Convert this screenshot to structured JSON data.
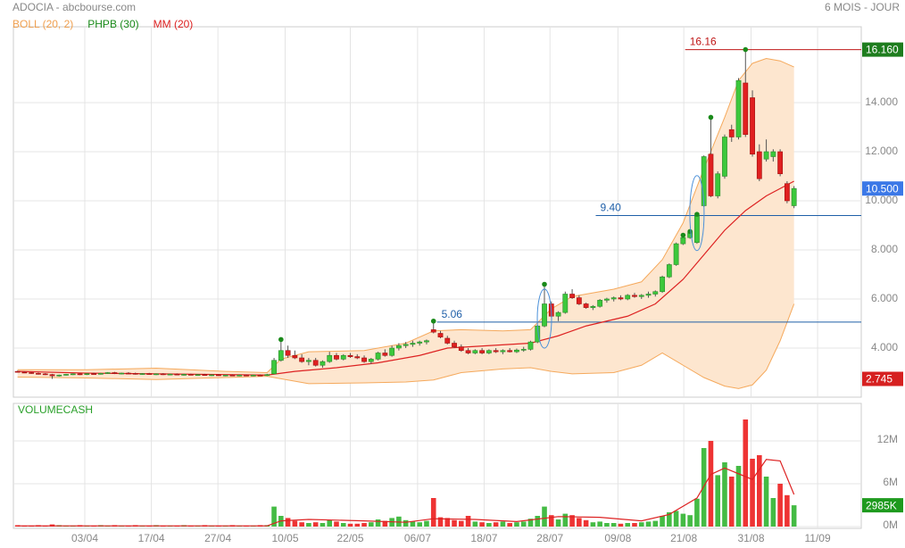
{
  "chart_data": {
    "type": "candlestick",
    "title": "ADOCIA - abcbourse.com",
    "period": "6 MOIS - JOUR",
    "legend": [
      {
        "name": "BOLL (20, 2)",
        "color": "#f0a050"
      },
      {
        "name": "PHPB (30)",
        "color": "#1a8a1a"
      },
      {
        "name": "MM (20)",
        "color": "#dd2222"
      }
    ],
    "xlim": [
      -0.6,
      121.7
    ],
    "xticks": [
      {
        "value": 9.7,
        "label": "03/04"
      },
      {
        "value": 19.3,
        "label": "17/04"
      },
      {
        "value": 28.9,
        "label": "27/04"
      },
      {
        "value": 38.6,
        "label": "10/05"
      },
      {
        "value": 48.0,
        "label": "22/05"
      },
      {
        "value": 57.7,
        "label": "06/07"
      },
      {
        "value": 67.3,
        "label": "18/07"
      },
      {
        "value": 76.8,
        "label": "28/07"
      },
      {
        "value": 86.6,
        "label": "09/08"
      },
      {
        "value": 96.1,
        "label": "21/08"
      },
      {
        "value": 105.8,
        "label": "31/08"
      },
      {
        "value": 115.4,
        "label": "11/09"
      }
    ],
    "ylim": [
      2,
      17.09
    ],
    "yticks": [
      {
        "value": 4,
        "label": "4.000"
      },
      {
        "value": 6,
        "label": "6.000"
      },
      {
        "value": 8,
        "label": "8.000"
      },
      {
        "value": 10,
        "label": "10.000"
      },
      {
        "value": 12,
        "label": "12.000"
      },
      {
        "value": 14,
        "label": "14.000"
      }
    ],
    "up_color": "#3cc83c",
    "down_color": "#e02020",
    "ohlc": [
      [
        3.05,
        3.08,
        3.0,
        3.02
      ],
      [
        3.02,
        3.05,
        2.98,
        3.0
      ],
      [
        3.0,
        3.02,
        2.95,
        2.97
      ],
      [
        2.97,
        3.0,
        2.92,
        2.95
      ],
      [
        2.95,
        2.98,
        2.9,
        2.93
      ],
      [
        2.92,
        2.95,
        2.745,
        2.87
      ],
      [
        2.87,
        2.92,
        2.84,
        2.9
      ],
      [
        2.9,
        2.95,
        2.88,
        2.93
      ],
      [
        2.93,
        2.97,
        2.9,
        2.95
      ],
      [
        2.95,
        2.98,
        2.9,
        2.92
      ],
      [
        2.92,
        2.97,
        2.9,
        2.96
      ],
      [
        2.96,
        3.0,
        2.93,
        2.95
      ],
      [
        2.95,
        2.99,
        2.92,
        2.97
      ],
      [
        2.97,
        3.02,
        2.95,
        3.0
      ],
      [
        3.0,
        3.03,
        2.94,
        2.96
      ],
      [
        2.96,
        3.0,
        2.93,
        2.98
      ],
      [
        2.98,
        3.02,
        2.95,
        2.97
      ],
      [
        2.97,
        3.0,
        2.92,
        2.94
      ],
      [
        2.94,
        2.98,
        2.91,
        2.96
      ],
      [
        2.96,
        2.99,
        2.92,
        2.93
      ],
      [
        2.93,
        2.97,
        2.9,
        2.95
      ],
      [
        2.95,
        2.98,
        2.9,
        2.92
      ],
      [
        2.92,
        2.96,
        2.89,
        2.94
      ],
      [
        2.94,
        2.97,
        2.9,
        2.91
      ],
      [
        2.91,
        2.95,
        2.88,
        2.93
      ],
      [
        2.93,
        2.96,
        2.89,
        2.9
      ],
      [
        2.9,
        2.94,
        2.87,
        2.92
      ],
      [
        2.92,
        2.95,
        2.88,
        2.89
      ],
      [
        2.89,
        2.93,
        2.86,
        2.91
      ],
      [
        2.91,
        2.94,
        2.87,
        2.88
      ],
      [
        2.88,
        2.92,
        2.85,
        2.9
      ],
      [
        2.9,
        2.93,
        2.86,
        2.88
      ],
      [
        2.88,
        2.92,
        2.85,
        2.9
      ],
      [
        2.9,
        2.93,
        2.86,
        2.87
      ],
      [
        2.87,
        2.92,
        2.85,
        2.9
      ],
      [
        2.9,
        2.93,
        2.86,
        2.88
      ],
      [
        2.88,
        2.95,
        2.86,
        2.92
      ],
      [
        2.95,
        3.6,
        2.93,
        3.5
      ],
      [
        3.5,
        4.35,
        3.45,
        3.9
      ],
      [
        3.9,
        4.1,
        3.6,
        3.7
      ],
      [
        3.7,
        3.9,
        3.55,
        3.6
      ],
      [
        3.6,
        3.75,
        3.4,
        3.45
      ],
      [
        3.45,
        3.6,
        3.3,
        3.5
      ],
      [
        3.5,
        3.6,
        3.25,
        3.3
      ],
      [
        3.3,
        3.5,
        3.2,
        3.45
      ],
      [
        3.45,
        3.85,
        3.4,
        3.7
      ],
      [
        3.7,
        3.8,
        3.5,
        3.55
      ],
      [
        3.55,
        3.75,
        3.5,
        3.7
      ],
      [
        3.7,
        3.8,
        3.6,
        3.65
      ],
      [
        3.65,
        3.75,
        3.55,
        3.6
      ],
      [
        3.6,
        3.7,
        3.4,
        3.45
      ],
      [
        3.45,
        3.6,
        3.35,
        3.55
      ],
      [
        3.55,
        3.85,
        3.5,
        3.8
      ],
      [
        3.8,
        3.95,
        3.65,
        3.7
      ],
      [
        3.7,
        4.1,
        3.65,
        4.0
      ],
      [
        4.0,
        4.2,
        3.9,
        4.1
      ],
      [
        4.1,
        4.25,
        4.0,
        4.15
      ],
      [
        4.15,
        4.3,
        4.05,
        4.2
      ],
      [
        4.2,
        4.3,
        4.1,
        4.25
      ],
      [
        4.25,
        4.35,
        4.15,
        4.3
      ],
      [
        4.75,
        5.1,
        4.6,
        4.65
      ],
      [
        4.6,
        4.7,
        4.4,
        4.45
      ],
      [
        4.4,
        4.5,
        4.15,
        4.2
      ],
      [
        4.2,
        4.3,
        4.0,
        4.05
      ],
      [
        4.05,
        4.15,
        3.85,
        3.9
      ],
      [
        3.9,
        4.0,
        3.75,
        3.8
      ],
      [
        3.8,
        3.95,
        3.75,
        3.9
      ],
      [
        3.9,
        4.0,
        3.75,
        3.8
      ],
      [
        3.8,
        3.95,
        3.75,
        3.9
      ],
      [
        3.9,
        4.0,
        3.8,
        3.85
      ],
      [
        3.85,
        3.95,
        3.75,
        3.9
      ],
      [
        3.9,
        4.0,
        3.82,
        3.85
      ],
      [
        3.85,
        3.98,
        3.8,
        3.92
      ],
      [
        3.92,
        4.05,
        3.85,
        3.95
      ],
      [
        3.95,
        4.3,
        3.9,
        4.25
      ],
      [
        4.25,
        4.95,
        4.2,
        4.9
      ],
      [
        4.9,
        6.6,
        4.85,
        5.8
      ],
      [
        5.8,
        5.9,
        5.25,
        5.3
      ],
      [
        5.3,
        5.5,
        5.1,
        5.45
      ],
      [
        5.45,
        6.3,
        5.4,
        6.2
      ],
      [
        6.2,
        6.4,
        6.0,
        6.05
      ],
      [
        6.05,
        6.15,
        5.75,
        5.8
      ],
      [
        5.8,
        5.85,
        5.6,
        5.65
      ],
      [
        5.65,
        5.75,
        5.55,
        5.7
      ],
      [
        5.7,
        6.0,
        5.65,
        5.95
      ],
      [
        5.95,
        6.05,
        5.85,
        6.0
      ],
      [
        6.0,
        6.1,
        5.9,
        6.05
      ],
      [
        6.05,
        6.15,
        5.95,
        6.0
      ],
      [
        6.0,
        6.2,
        5.95,
        6.15
      ],
      [
        6.15,
        6.25,
        6.05,
        6.1
      ],
      [
        6.1,
        6.2,
        6.0,
        6.15
      ],
      [
        6.15,
        6.3,
        6.05,
        6.2
      ],
      [
        6.2,
        6.35,
        6.1,
        6.3
      ],
      [
        6.3,
        6.95,
        6.25,
        6.9
      ],
      [
        6.9,
        7.45,
        6.85,
        7.4
      ],
      [
        7.4,
        8.3,
        7.35,
        8.25
      ],
      [
        8.25,
        8.6,
        8.2,
        8.5
      ],
      [
        8.5,
        8.75,
        8.45,
        8.7
      ],
      [
        8.3,
        9.45,
        8.25,
        9.4
      ],
      [
        9.8,
        11.85,
        9.75,
        11.8
      ],
      [
        11.9,
        13.4,
        10.15,
        10.2
      ],
      [
        10.2,
        11.2,
        10.1,
        11.1
      ],
      [
        11.0,
        12.7,
        10.9,
        12.6
      ],
      [
        12.9,
        13.1,
        12.4,
        12.6
      ],
      [
        12.6,
        15.0,
        12.5,
        14.9
      ],
      [
        14.8,
        16.16,
        12.6,
        12.7
      ],
      [
        14.2,
        14.5,
        11.8,
        11.9
      ],
      [
        12.0,
        12.3,
        10.8,
        10.9
      ],
      [
        11.7,
        12.5,
        11.6,
        12.0
      ],
      [
        11.8,
        12.1,
        11.6,
        12.0
      ],
      [
        12.0,
        12.1,
        11.0,
        11.1
      ],
      [
        10.7,
        10.8,
        9.9,
        10.0
      ],
      [
        9.8,
        10.6,
        9.7,
        10.5
      ]
    ],
    "boll": {
      "color": "#f5a95c",
      "fill": "#fde6cf",
      "x": [
        0,
        10,
        20,
        30,
        36,
        38,
        42,
        50,
        56,
        60,
        64,
        70,
        74,
        77,
        80,
        86,
        90,
        93,
        96,
        99,
        102,
        104,
        106,
        108,
        110,
        112
      ],
      "upper": [
        3.12,
        3.12,
        3.18,
        3.05,
        3.0,
        3.55,
        3.85,
        3.9,
        4.2,
        4.7,
        4.75,
        4.7,
        4.75,
        5.6,
        6.1,
        6.4,
        6.7,
        7.6,
        9.1,
        11.3,
        13.4,
        14.9,
        15.6,
        15.8,
        15.7,
        15.45
      ],
      "lower": [
        2.82,
        2.78,
        2.72,
        2.8,
        2.85,
        2.75,
        2.55,
        2.58,
        2.62,
        2.7,
        3.0,
        3.15,
        3.2,
        3.05,
        2.95,
        3.0,
        3.3,
        3.8,
        3.3,
        2.8,
        2.45,
        2.35,
        2.5,
        3.1,
        4.3,
        5.8
      ]
    },
    "mm": {
      "color": "#dd2222",
      "x": [
        0,
        10,
        20,
        30,
        36,
        40,
        46,
        52,
        58,
        62,
        68,
        74,
        78,
        82,
        88,
        92,
        96,
        99,
        102,
        105,
        108,
        110,
        112
      ],
      "values": [
        3.05,
        2.98,
        2.95,
        2.92,
        2.9,
        3.05,
        3.2,
        3.4,
        3.7,
        4.0,
        4.1,
        4.2,
        4.5,
        4.9,
        5.3,
        5.8,
        6.8,
        7.8,
        8.8,
        9.6,
        10.2,
        10.5,
        10.8
      ]
    },
    "phpb": {
      "color": "#1a8a1a",
      "x": [
        38,
        60,
        76,
        96,
        97,
        98,
        100,
        105
      ],
      "values": [
        4.35,
        5.1,
        6.6,
        8.6,
        8.75,
        9.45,
        13.4,
        16.16
      ]
    },
    "levels": [
      {
        "value": 16.16,
        "label": "16.16",
        "x_start": 96.3,
        "color": "#c01818"
      },
      {
        "value": 9.4,
        "label": "9.40",
        "x_start": 83.4,
        "color": "#1f5fa8"
      },
      {
        "value": 5.06,
        "label": "5.06",
        "x_start": 60.5,
        "color": "#1f5fa8"
      }
    ],
    "price_tags": [
      {
        "value": 16.16,
        "label": "16.160",
        "color": "#1e7d1e"
      },
      {
        "value": 10.5,
        "label": "10.500",
        "color": "#3b78e7"
      },
      {
        "value": 2.745,
        "label": "2.745",
        "color": "#d62020"
      }
    ],
    "volume": {
      "title": "VOLUMECASH",
      "ylim": [
        0,
        17.25
      ],
      "yticks": [
        {
          "value": 0,
          "label": "0M"
        },
        {
          "value": 6,
          "label": "6M"
        },
        {
          "value": 12,
          "label": "12M"
        }
      ],
      "values": [
        0.2,
        0.1,
        0.1,
        0.2,
        0.1,
        0.3,
        0.2,
        0.1,
        0.1,
        0.2,
        0.1,
        0.1,
        0.2,
        0.1,
        0.2,
        0.1,
        0.1,
        0.2,
        0.1,
        0.1,
        0.2,
        0.1,
        0.1,
        0.1,
        0.2,
        0.1,
        0.1,
        0.2,
        0.1,
        0.1,
        0.1,
        0.2,
        0.1,
        0.1,
        0.1,
        0.2,
        0.2,
        2.8,
        1.5,
        1.2,
        0.8,
        0.6,
        0.5,
        0.6,
        0.5,
        0.9,
        0.7,
        0.5,
        0.4,
        0.4,
        0.5,
        0.6,
        1.0,
        0.8,
        1.2,
        1.4,
        0.9,
        0.7,
        0.6,
        0.8,
        4.0,
        1.3,
        1.2,
        0.9,
        0.8,
        1.5,
        0.7,
        0.6,
        0.5,
        0.6,
        0.7,
        0.5,
        0.6,
        0.7,
        1.1,
        1.5,
        2.8,
        1.6,
        1.0,
        1.8,
        1.6,
        1.2,
        0.9,
        0.6,
        0.7,
        0.5,
        0.5,
        0.4,
        0.5,
        0.5,
        0.6,
        0.7,
        0.8,
        1.5,
        2.0,
        2.2,
        1.8,
        1.6,
        3.9,
        11.0,
        12.0,
        7.2,
        9.0,
        7.0,
        8.5,
        15.0,
        9.5,
        10.0,
        7.0,
        4.0,
        6.0,
        4.4,
        2.985
      ],
      "ma": {
        "color": "#dd2222",
        "x": [
          0,
          36,
          38,
          42,
          50,
          56,
          60,
          66,
          72,
          78,
          84,
          90,
          94,
          98,
          100,
          102,
          106,
          108,
          110,
          112
        ],
        "values": [
          0.1,
          0.1,
          0.8,
          1.0,
          0.8,
          0.6,
          1.1,
          1.0,
          0.7,
          1.4,
          1.3,
          0.8,
          1.7,
          4.0,
          7.3,
          8.2,
          6.6,
          9.4,
          9.2,
          4.5
        ]
      },
      "tag": {
        "value": 2.985,
        "label": "2985K",
        "color": "#1e9a1e"
      }
    }
  }
}
